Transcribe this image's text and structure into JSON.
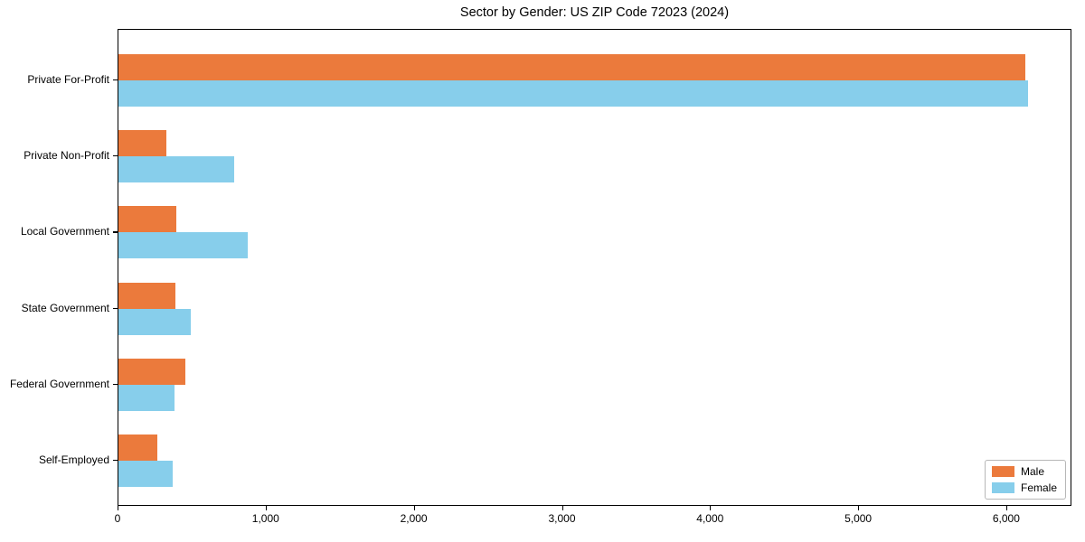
{
  "title": "Sector by Gender: US ZIP Code 72023 (2024)",
  "legend": {
    "items": [
      {
        "label": "Male",
        "color": "#EB7A3C"
      },
      {
        "label": "Female",
        "color": "#87CEEB"
      }
    ]
  },
  "chart_data": {
    "type": "bar",
    "orientation": "horizontal",
    "title": "Sector by Gender: US ZIP Code 72023 (2024)",
    "categories": [
      "Private For-Profit",
      "Private Non-Profit",
      "Local Government",
      "State Government",
      "Federal Government",
      "Self-Employed"
    ],
    "series": [
      {
        "name": "Male",
        "color": "#EB7A3C",
        "values": [
          6120,
          325,
          390,
          385,
          450,
          260
        ]
      },
      {
        "name": "Female",
        "color": "#87CEEB",
        "values": [
          6140,
          780,
          870,
          490,
          380,
          365
        ]
      }
    ],
    "xlabel": "",
    "ylabel": "",
    "xlim": [
      0,
      6440
    ],
    "xticks": [
      0,
      1000,
      2000,
      3000,
      4000,
      5000,
      6000
    ],
    "xtick_labels": [
      "0",
      "1,000",
      "2,000",
      "3,000",
      "4,000",
      "5,000",
      "6,000"
    ],
    "grid": false,
    "legend_position": "lower right"
  }
}
